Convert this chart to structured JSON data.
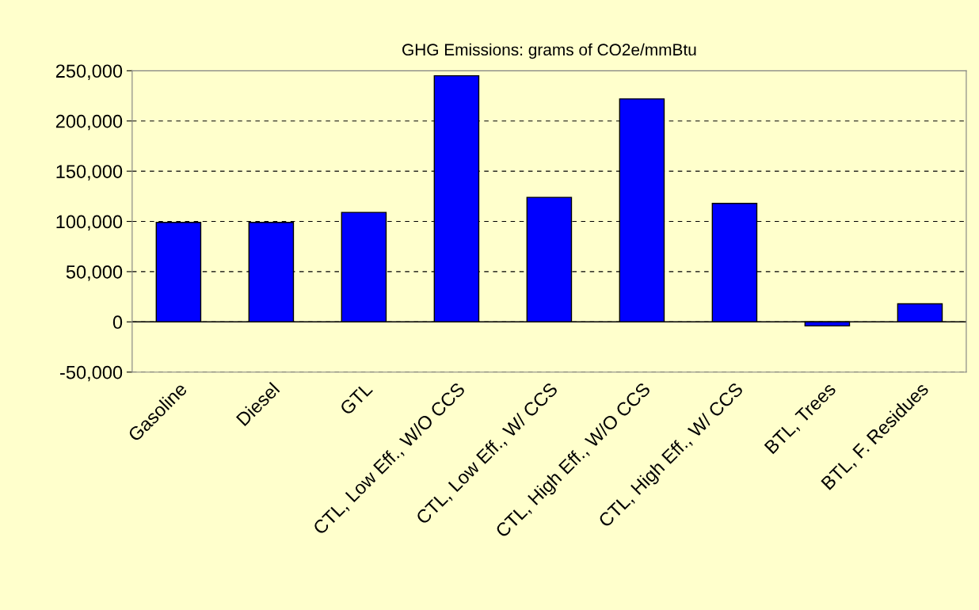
{
  "chart_data": {
    "type": "bar",
    "title": "GHG Emissions: grams of CO2e/mmBtu",
    "categories": [
      "Gasoline",
      "Diesel",
      "GTL",
      "CTL, Low Eff., W/O CCS",
      "CTL, Low Eff., W/ CCS",
      "CTL, High Eff., W/O CCS",
      "CTL, High Eff., W/ CCS",
      "BTL, Trees",
      "BTL, F. Residues"
    ],
    "values": [
      99000,
      99000,
      109000,
      245000,
      124000,
      222000,
      118000,
      -4000,
      18000
    ],
    "color": "#0000ff",
    "ylim": [
      -50000,
      250000
    ],
    "yticks": [
      {
        "value": -50000,
        "label": "-50,000"
      },
      {
        "value": 0,
        "label": "0"
      },
      {
        "value": 50000,
        "label": "50,000"
      },
      {
        "value": 100000,
        "label": "100,000"
      },
      {
        "value": 150000,
        "label": "150,000"
      },
      {
        "value": 200000,
        "label": "200,000"
      },
      {
        "value": 250000,
        "label": "250,000"
      }
    ],
    "grid": "y",
    "line_style": "dashed"
  }
}
